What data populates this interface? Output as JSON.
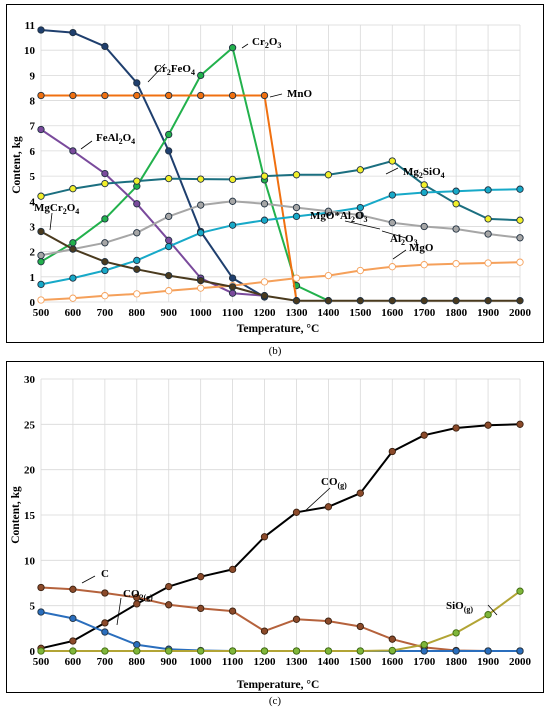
{
  "chart_data": [
    {
      "type": "line",
      "panel_label": "(b)",
      "xlabel": "Temperature, °C",
      "ylabel": "Content, kg",
      "xlim": [
        500,
        2000
      ],
      "ylim": [
        0,
        11
      ],
      "x": [
        500,
        600,
        700,
        800,
        900,
        1000,
        1100,
        1200,
        1300,
        1400,
        1500,
        1600,
        1700,
        1800,
        1900,
        2000
      ],
      "x_ticks": [
        "500",
        "600",
        "700",
        "800",
        "900",
        "1000",
        "1100",
        "1200",
        "1300",
        "1400",
        "1500",
        "1600",
        "1700",
        "1800",
        "1900",
        "2000"
      ],
      "y_ticks": [
        "0",
        "1",
        "2",
        "3",
        "4",
        "5",
        "6",
        "7",
        "8",
        "9",
        "10",
        "11"
      ],
      "grid": true,
      "series": [
        {
          "name": "Cr2FeO4",
          "color": "#1f3f6e",
          "marker": "filled",
          "x": [
            500,
            600,
            700,
            800,
            900,
            1000,
            1100,
            1200
          ],
          "values": [
            10.8,
            10.7,
            10.15,
            8.7,
            6.0,
            2.8,
            0.95,
            0.2
          ]
        },
        {
          "name": "Cr2O3",
          "color": "#22b14c",
          "marker": "filled",
          "x": [
            500,
            600,
            700,
            800,
            900,
            1000,
            1100,
            1200,
            1300,
            1400
          ],
          "values": [
            1.6,
            2.35,
            3.3,
            4.6,
            6.65,
            9.0,
            10.1,
            4.85,
            0.65,
            0.05
          ]
        },
        {
          "name": "MnO",
          "color": "#f07010",
          "marker": "filled",
          "x": [
            500,
            600,
            700,
            800,
            900,
            1000,
            1100,
            1200,
            1300
          ],
          "values": [
            8.2,
            8.2,
            8.2,
            8.2,
            8.2,
            8.2,
            8.2,
            8.2,
            0.05
          ]
        },
        {
          "name": "FeAl2O4",
          "color": "#7a4a9c",
          "marker": "filled",
          "x": [
            500,
            600,
            700,
            800,
            900,
            1000,
            1100,
            1200
          ],
          "values": [
            6.85,
            6.0,
            5.1,
            3.9,
            2.45,
            0.95,
            0.35,
            0.25
          ]
        },
        {
          "name": "Mg2SiO4",
          "color": "#1b6f80",
          "marker": "yellow",
          "x": [
            500,
            600,
            700,
            800,
            900,
            1000,
            1100,
            1200,
            1300,
            1400,
            1500,
            1600,
            1700,
            1800,
            1900,
            2000
          ],
          "values": [
            4.2,
            4.5,
            4.7,
            4.8,
            4.9,
            4.88,
            4.87,
            5.0,
            5.05,
            5.05,
            5.25,
            5.6,
            4.65,
            3.9,
            3.3,
            3.25
          ]
        },
        {
          "name": "MgO*Al2O3",
          "color": "#17a9c8",
          "marker": "filled",
          "x": [
            500,
            600,
            700,
            800,
            900,
            1000,
            1100,
            1200,
            1300,
            1400,
            1500,
            1600,
            1700,
            1800,
            1900,
            2000
          ],
          "values": [
            0.7,
            0.95,
            1.25,
            1.65,
            2.2,
            2.75,
            3.05,
            3.25,
            3.4,
            3.55,
            3.75,
            4.25,
            4.35,
            4.4,
            4.45,
            4.48
          ]
        },
        {
          "name": "Al2O3",
          "color": "#a6a6a6",
          "marker": "filled",
          "x": [
            500,
            600,
            700,
            800,
            900,
            1000,
            1100,
            1200,
            1300,
            1400,
            1500,
            1600,
            1700,
            1800,
            1900,
            2000
          ],
          "values": [
            1.85,
            2.1,
            2.35,
            2.75,
            3.4,
            3.85,
            4.0,
            3.9,
            3.75,
            3.6,
            3.45,
            3.15,
            3.0,
            2.9,
            2.7,
            2.55
          ]
        },
        {
          "name": "MgO",
          "color": "#f5a05a",
          "marker": "hollow",
          "x": [
            500,
            600,
            700,
            800,
            900,
            1000,
            1100,
            1200,
            1300,
            1400,
            1500,
            1600,
            1700,
            1800,
            1900,
            2000
          ],
          "values": [
            0.08,
            0.15,
            0.25,
            0.32,
            0.45,
            0.55,
            0.65,
            0.8,
            0.95,
            1.05,
            1.25,
            1.4,
            1.48,
            1.52,
            1.55,
            1.58
          ]
        },
        {
          "name": "MgCr2O4",
          "color": "#4a3a1e",
          "marker": "filled",
          "x": [
            500,
            600,
            700,
            800,
            900,
            1000,
            1100,
            1200,
            1300,
            1400,
            1500,
            1600,
            1700,
            1800,
            1900,
            2000
          ],
          "values": [
            2.8,
            2.1,
            1.6,
            1.3,
            1.05,
            0.85,
            0.6,
            0.25,
            0.05,
            0.05,
            0.05,
            0.05,
            0.05,
            0.05,
            0.05,
            0.05
          ]
        }
      ],
      "annotations": {
        "cr2feo4": {
          "main": "Cr",
          "s1": "2",
          "m2": "FeO",
          "s2": "4"
        },
        "cr2o3": {
          "main": "Cr",
          "s1": "2",
          "m2": "O",
          "s2": "3"
        },
        "mno": {
          "main": "MnO"
        },
        "feal2o4": {
          "main": "FeAl",
          "s1": "2",
          "m2": "O",
          "s2": "4"
        },
        "mg2sio4": {
          "main": "Mg",
          "s1": "2",
          "m2": "SiO",
          "s2": "4"
        },
        "mgoal2o3": {
          "main": "MgO*Al",
          "s1": "2",
          "m2": "O",
          "s2": "3"
        },
        "al2o3": {
          "main": "Al",
          "s1": "2",
          "m2": "O",
          "s2": "3"
        },
        "mgo": {
          "main": "MgO"
        },
        "mgcr2o4": {
          "main": "MgCr",
          "s1": "2",
          "m2": "O",
          "s2": "4"
        }
      }
    },
    {
      "type": "line",
      "panel_label": "(c)",
      "xlabel": "Temperature, °C",
      "ylabel": "Content, kg",
      "xlim": [
        500,
        2000
      ],
      "ylim": [
        0,
        30
      ],
      "x": [
        500,
        600,
        700,
        800,
        900,
        1000,
        1100,
        1200,
        1300,
        1400,
        1500,
        1600,
        1700,
        1800,
        1900,
        2000
      ],
      "x_ticks": [
        "500",
        "600",
        "700",
        "800",
        "900",
        "1000",
        "1100",
        "1200",
        "1300",
        "1400",
        "1500",
        "1600",
        "1700",
        "1800",
        "1900",
        "2000"
      ],
      "y_ticks": [
        "0",
        "5",
        "10",
        "15",
        "20",
        "25",
        "30"
      ],
      "grid": true,
      "series": [
        {
          "name": "CO(g)",
          "color": "#000000",
          "marker": "brown",
          "x": [
            500,
            600,
            700,
            800,
            900,
            1000,
            1100,
            1200,
            1300,
            1400,
            1500,
            1600,
            1700,
            1800,
            1900,
            2000
          ],
          "values": [
            0.3,
            1.1,
            3.1,
            5.2,
            7.1,
            8.2,
            9.0,
            12.6,
            15.3,
            15.9,
            17.4,
            22.0,
            23.8,
            24.6,
            24.9,
            25.0
          ]
        },
        {
          "name": "C",
          "color": "#b5623c",
          "marker": "brown",
          "x": [
            500,
            600,
            700,
            800,
            900,
            1000,
            1100,
            1200,
            1300,
            1400,
            1500,
            1600,
            1700,
            1800,
            1900,
            2000
          ],
          "values": [
            7.0,
            6.8,
            6.4,
            5.9,
            5.1,
            4.7,
            4.4,
            2.2,
            3.5,
            3.3,
            2.7,
            1.3,
            0.4,
            0.05,
            0.0,
            0.0
          ]
        },
        {
          "name": "CO2(g)",
          "color": "#2a6ebd",
          "marker": "filled",
          "x": [
            500,
            600,
            700,
            800,
            900,
            1000,
            1100,
            1200,
            1300,
            1400,
            1500,
            1600,
            1700,
            1800,
            1900,
            2000
          ],
          "values": [
            4.3,
            3.6,
            2.1,
            0.7,
            0.2,
            0.05,
            0.0,
            0.0,
            0.0,
            0.0,
            0.0,
            0.0,
            0.0,
            0.0,
            0.0,
            0.0
          ]
        },
        {
          "name": "SiO(g)",
          "color": "#b2a435",
          "marker": "green",
          "x": [
            500,
            600,
            700,
            800,
            900,
            1000,
            1100,
            1200,
            1300,
            1400,
            1500,
            1600,
            1700,
            1800,
            1900,
            2000
          ],
          "values": [
            0.0,
            0.0,
            0.0,
            0.0,
            0.0,
            0.0,
            0.0,
            0.0,
            0.0,
            0.0,
            0.0,
            0.05,
            0.7,
            2.0,
            4.0,
            6.6
          ]
        }
      ],
      "annotations": {
        "co": {
          "main": "CO",
          "s1": "(g)"
        },
        "co2": {
          "main": "CO",
          "s1": "2(g)"
        },
        "c": {
          "main": "C"
        },
        "sio": {
          "main": "SiO",
          "s1": "(g)"
        }
      }
    }
  ]
}
